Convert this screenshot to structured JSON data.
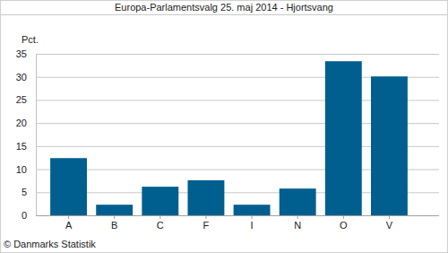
{
  "chart_data": {
    "type": "bar",
    "title": "Europa-Parlamentsvalg 25. maj 2014 - Hjortsvang",
    "y_label": "Pct.",
    "source": "© Danmarks Statistik",
    "categories": [
      "A",
      "B",
      "C",
      "F",
      "I",
      "N",
      "O",
      "V"
    ],
    "values": [
      12.4,
      2.3,
      6.2,
      7.6,
      2.3,
      5.8,
      33.4,
      30.1
    ],
    "color": "#005f8f",
    "ylim": [
      0,
      35
    ],
    "yticks": [
      0,
      5,
      10,
      15,
      20,
      25,
      30,
      35
    ],
    "grid": true
  }
}
